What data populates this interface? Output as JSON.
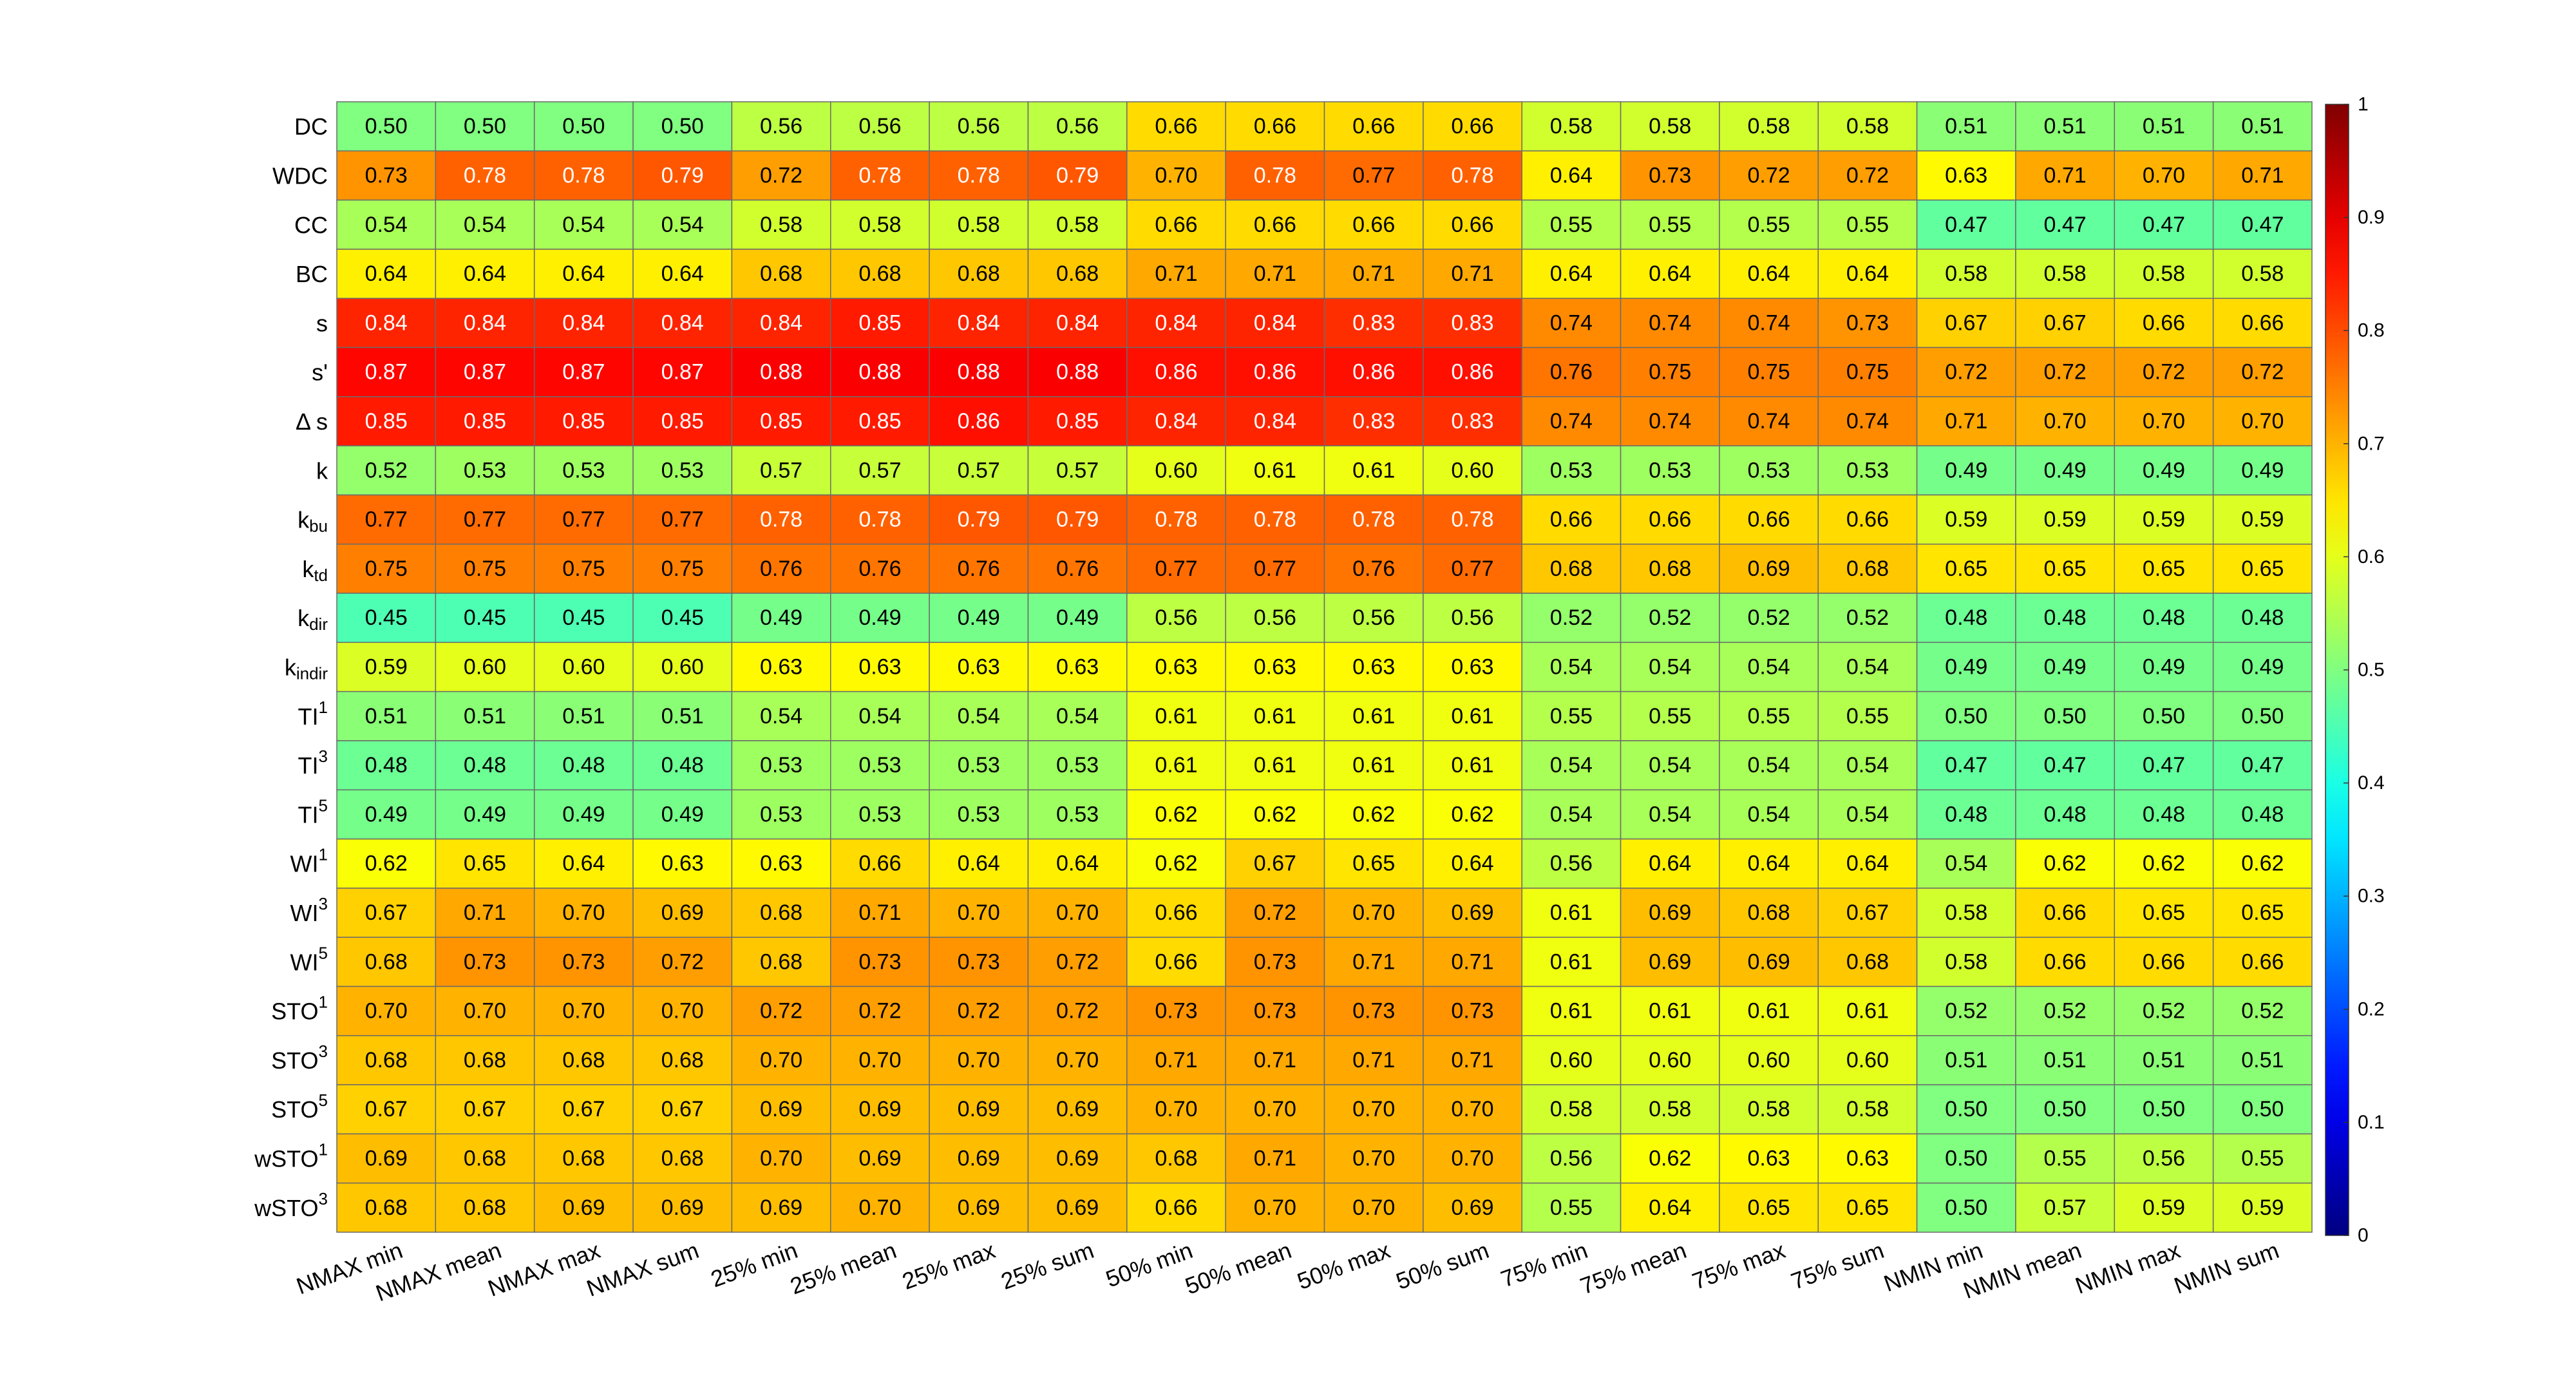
{
  "chart_data": {
    "type": "heatmap",
    "title": "",
    "xlabel": "",
    "ylabel": "",
    "colormap": "jet",
    "clim": [
      0,
      1
    ],
    "colorbar_ticks": [
      0,
      0.1,
      0.2,
      0.3,
      0.4,
      0.5,
      0.6,
      0.7,
      0.8,
      0.9,
      1
    ],
    "colorbar_tick_labels": [
      "0",
      "0.1",
      "0.2",
      "0.3",
      "0.4",
      "0.5",
      "0.6",
      "0.7",
      "0.8",
      "0.9",
      "1"
    ],
    "colorbar_placement": "right",
    "columns": [
      "NMAX min",
      "NMAX mean",
      "NMAX max",
      "NMAX sum",
      "25% min",
      "25% mean",
      "25% max",
      "25% sum",
      "50% min",
      "50% mean",
      "50% max",
      "50% sum",
      "75% min",
      "75% mean",
      "75% max",
      "75% sum",
      "NMIN min",
      "NMIN mean",
      "NMIN max",
      "NMIN sum"
    ],
    "rows": [
      {
        "base": "DC",
        "sub": "",
        "sup": ""
      },
      {
        "base": "WDC",
        "sub": "",
        "sup": ""
      },
      {
        "base": "CC",
        "sub": "",
        "sup": ""
      },
      {
        "base": "BC",
        "sub": "",
        "sup": ""
      },
      {
        "base": "s",
        "sub": "",
        "sup": ""
      },
      {
        "base": "s'",
        "sub": "",
        "sup": ""
      },
      {
        "base": "Δ s",
        "sub": "",
        "sup": ""
      },
      {
        "base": "k",
        "sub": "",
        "sup": ""
      },
      {
        "base": "k",
        "sub": "bu",
        "sup": ""
      },
      {
        "base": "k",
        "sub": "td",
        "sup": ""
      },
      {
        "base": "k",
        "sub": "dir",
        "sup": ""
      },
      {
        "base": "k",
        "sub": "indir",
        "sup": ""
      },
      {
        "base": "TI",
        "sub": "",
        "sup": "1"
      },
      {
        "base": "TI",
        "sub": "",
        "sup": "3"
      },
      {
        "base": "TI",
        "sub": "",
        "sup": "5"
      },
      {
        "base": "WI",
        "sub": "",
        "sup": "1"
      },
      {
        "base": "WI",
        "sub": "",
        "sup": "3"
      },
      {
        "base": "WI",
        "sub": "",
        "sup": "5"
      },
      {
        "base": "STO",
        "sub": "",
        "sup": "1"
      },
      {
        "base": "STO",
        "sub": "",
        "sup": "3"
      },
      {
        "base": "STO",
        "sub": "",
        "sup": "5"
      },
      {
        "base": "wSTO",
        "sub": "",
        "sup": "1"
      },
      {
        "base": "wSTO",
        "sub": "",
        "sup": "3"
      }
    ],
    "values": [
      [
        "0.50",
        "0.50",
        "0.50",
        "0.50",
        "0.56",
        "0.56",
        "0.56",
        "0.56",
        "0.66",
        "0.66",
        "0.66",
        "0.66",
        "0.58",
        "0.58",
        "0.58",
        "0.58",
        "0.51",
        "0.51",
        "0.51",
        "0.51"
      ],
      [
        "0.73",
        "0.78",
        "0.78",
        "0.79",
        "0.72",
        "0.78",
        "0.78",
        "0.79",
        "0.70",
        "0.78",
        "0.77",
        "0.78",
        "0.64",
        "0.73",
        "0.72",
        "0.72",
        "0.63",
        "0.71",
        "0.70",
        "0.71"
      ],
      [
        "0.54",
        "0.54",
        "0.54",
        "0.54",
        "0.58",
        "0.58",
        "0.58",
        "0.58",
        "0.66",
        "0.66",
        "0.66",
        "0.66",
        "0.55",
        "0.55",
        "0.55",
        "0.55",
        "0.47",
        "0.47",
        "0.47",
        "0.47"
      ],
      [
        "0.64",
        "0.64",
        "0.64",
        "0.64",
        "0.68",
        "0.68",
        "0.68",
        "0.68",
        "0.71",
        "0.71",
        "0.71",
        "0.71",
        "0.64",
        "0.64",
        "0.64",
        "0.64",
        "0.58",
        "0.58",
        "0.58",
        "0.58"
      ],
      [
        "0.84",
        "0.84",
        "0.84",
        "0.84",
        "0.84",
        "0.85",
        "0.84",
        "0.84",
        "0.84",
        "0.84",
        "0.83",
        "0.83",
        "0.74",
        "0.74",
        "0.74",
        "0.73",
        "0.67",
        "0.67",
        "0.66",
        "0.66"
      ],
      [
        "0.87",
        "0.87",
        "0.87",
        "0.87",
        "0.88",
        "0.88",
        "0.88",
        "0.88",
        "0.86",
        "0.86",
        "0.86",
        "0.86",
        "0.76",
        "0.75",
        "0.75",
        "0.75",
        "0.72",
        "0.72",
        "0.72",
        "0.72"
      ],
      [
        "0.85",
        "0.85",
        "0.85",
        "0.85",
        "0.85",
        "0.85",
        "0.86",
        "0.85",
        "0.84",
        "0.84",
        "0.83",
        "0.83",
        "0.74",
        "0.74",
        "0.74",
        "0.74",
        "0.71",
        "0.70",
        "0.70",
        "0.70"
      ],
      [
        "0.52",
        "0.53",
        "0.53",
        "0.53",
        "0.57",
        "0.57",
        "0.57",
        "0.57",
        "0.60",
        "0.61",
        "0.61",
        "0.60",
        "0.53",
        "0.53",
        "0.53",
        "0.53",
        "0.49",
        "0.49",
        "0.49",
        "0.49"
      ],
      [
        "0.77",
        "0.77",
        "0.77",
        "0.77",
        "0.78",
        "0.78",
        "0.79",
        "0.79",
        "0.78",
        "0.78",
        "0.78",
        "0.78",
        "0.66",
        "0.66",
        "0.66",
        "0.66",
        "0.59",
        "0.59",
        "0.59",
        "0.59"
      ],
      [
        "0.75",
        "0.75",
        "0.75",
        "0.75",
        "0.76",
        "0.76",
        "0.76",
        "0.76",
        "0.77",
        "0.77",
        "0.76",
        "0.77",
        "0.68",
        "0.68",
        "0.69",
        "0.68",
        "0.65",
        "0.65",
        "0.65",
        "0.65"
      ],
      [
        "0.45",
        "0.45",
        "0.45",
        "0.45",
        "0.49",
        "0.49",
        "0.49",
        "0.49",
        "0.56",
        "0.56",
        "0.56",
        "0.56",
        "0.52",
        "0.52",
        "0.52",
        "0.52",
        "0.48",
        "0.48",
        "0.48",
        "0.48"
      ],
      [
        "0.59",
        "0.60",
        "0.60",
        "0.60",
        "0.63",
        "0.63",
        "0.63",
        "0.63",
        "0.63",
        "0.63",
        "0.63",
        "0.63",
        "0.54",
        "0.54",
        "0.54",
        "0.54",
        "0.49",
        "0.49",
        "0.49",
        "0.49"
      ],
      [
        "0.51",
        "0.51",
        "0.51",
        "0.51",
        "0.54",
        "0.54",
        "0.54",
        "0.54",
        "0.61",
        "0.61",
        "0.61",
        "0.61",
        "0.55",
        "0.55",
        "0.55",
        "0.55",
        "0.50",
        "0.50",
        "0.50",
        "0.50"
      ],
      [
        "0.48",
        "0.48",
        "0.48",
        "0.48",
        "0.53",
        "0.53",
        "0.53",
        "0.53",
        "0.61",
        "0.61",
        "0.61",
        "0.61",
        "0.54",
        "0.54",
        "0.54",
        "0.54",
        "0.47",
        "0.47",
        "0.47",
        "0.47"
      ],
      [
        "0.49",
        "0.49",
        "0.49",
        "0.49",
        "0.53",
        "0.53",
        "0.53",
        "0.53",
        "0.62",
        "0.62",
        "0.62",
        "0.62",
        "0.54",
        "0.54",
        "0.54",
        "0.54",
        "0.48",
        "0.48",
        "0.48",
        "0.48"
      ],
      [
        "0.62",
        "0.65",
        "0.64",
        "0.63",
        "0.63",
        "0.66",
        "0.64",
        "0.64",
        "0.62",
        "0.67",
        "0.65",
        "0.64",
        "0.56",
        "0.64",
        "0.64",
        "0.64",
        "0.54",
        "0.62",
        "0.62",
        "0.62"
      ],
      [
        "0.67",
        "0.71",
        "0.70",
        "0.69",
        "0.68",
        "0.71",
        "0.70",
        "0.70",
        "0.66",
        "0.72",
        "0.70",
        "0.69",
        "0.61",
        "0.69",
        "0.68",
        "0.67",
        "0.58",
        "0.66",
        "0.65",
        "0.65"
      ],
      [
        "0.68",
        "0.73",
        "0.73",
        "0.72",
        "0.68",
        "0.73",
        "0.73",
        "0.72",
        "0.66",
        "0.73",
        "0.71",
        "0.71",
        "0.61",
        "0.69",
        "0.69",
        "0.68",
        "0.58",
        "0.66",
        "0.66",
        "0.66"
      ],
      [
        "0.70",
        "0.70",
        "0.70",
        "0.70",
        "0.72",
        "0.72",
        "0.72",
        "0.72",
        "0.73",
        "0.73",
        "0.73",
        "0.73",
        "0.61",
        "0.61",
        "0.61",
        "0.61",
        "0.52",
        "0.52",
        "0.52",
        "0.52"
      ],
      [
        "0.68",
        "0.68",
        "0.68",
        "0.68",
        "0.70",
        "0.70",
        "0.70",
        "0.70",
        "0.71",
        "0.71",
        "0.71",
        "0.71",
        "0.60",
        "0.60",
        "0.60",
        "0.60",
        "0.51",
        "0.51",
        "0.51",
        "0.51"
      ],
      [
        "0.67",
        "0.67",
        "0.67",
        "0.67",
        "0.69",
        "0.69",
        "0.69",
        "0.69",
        "0.70",
        "0.70",
        "0.70",
        "0.70",
        "0.58",
        "0.58",
        "0.58",
        "0.58",
        "0.50",
        "0.50",
        "0.50",
        "0.50"
      ],
      [
        "0.69",
        "0.68",
        "0.68",
        "0.68",
        "0.70",
        "0.69",
        "0.69",
        "0.69",
        "0.68",
        "0.71",
        "0.70",
        "0.70",
        "0.56",
        "0.62",
        "0.63",
        "0.63",
        "0.50",
        "0.55",
        "0.56",
        "0.55"
      ],
      [
        "0.68",
        "0.68",
        "0.69",
        "0.69",
        "0.69",
        "0.70",
        "0.69",
        "0.69",
        "0.66",
        "0.70",
        "0.70",
        "0.69",
        "0.55",
        "0.64",
        "0.65",
        "0.65",
        "0.50",
        "0.57",
        "0.59",
        "0.59"
      ]
    ]
  }
}
